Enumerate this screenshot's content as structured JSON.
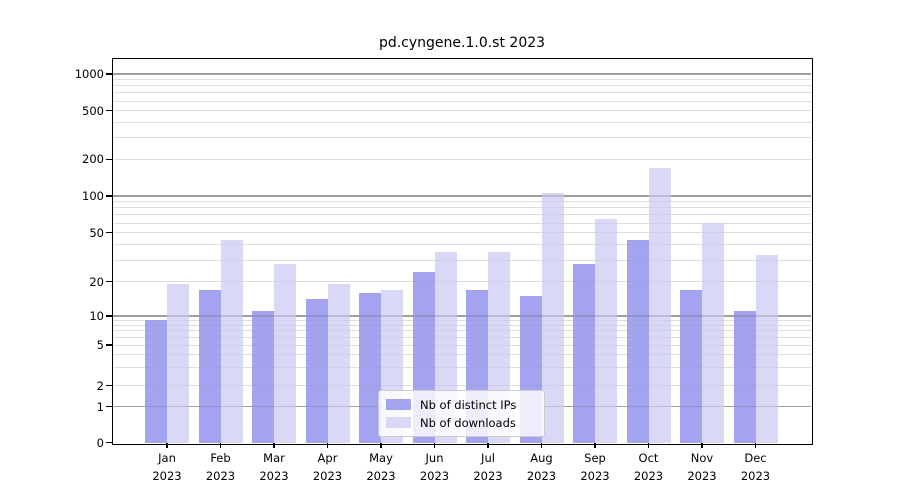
{
  "title": "pd.cyngene.1.0.st 2023",
  "chart_data": {
    "type": "bar",
    "title": "pd.cyngene.1.0.st 2023",
    "categories": [
      "Jan 2023",
      "Feb 2023",
      "Mar 2023",
      "Apr 2023",
      "May 2023",
      "Jun 2023",
      "Jul 2023",
      "Aug 2023",
      "Sep 2023",
      "Oct 2023",
      "Nov 2023",
      "Dec 2023"
    ],
    "series": [
      {
        "name": "Nb of distinct IPs",
        "color": "#a3a3ef",
        "values": [
          9,
          17,
          11,
          14,
          16,
          24,
          17,
          15,
          28,
          44,
          17,
          11
        ]
      },
      {
        "name": "Nb of downloads",
        "color": "#d9d9f7",
        "values": [
          19,
          44,
          28,
          19,
          17,
          35,
          35,
          106,
          65,
          170,
          60,
          33
        ]
      }
    ],
    "xlabel": "",
    "ylabel": "",
    "yscale": "symlog",
    "ylim": [
      0,
      1000
    ],
    "yticks": [
      0,
      1,
      2,
      5,
      10,
      20,
      50,
      100,
      200,
      500,
      1000
    ],
    "grid": true,
    "legend_position": "lower center"
  },
  "colors": {
    "bar_distinct_ips": "#a3a3ef",
    "bar_downloads": "#d9d9f7",
    "major_grid": "#b5b5b5",
    "minor_grid": "#e9e9e9",
    "axis": "#000000",
    "legend_border": "#cccccc"
  }
}
